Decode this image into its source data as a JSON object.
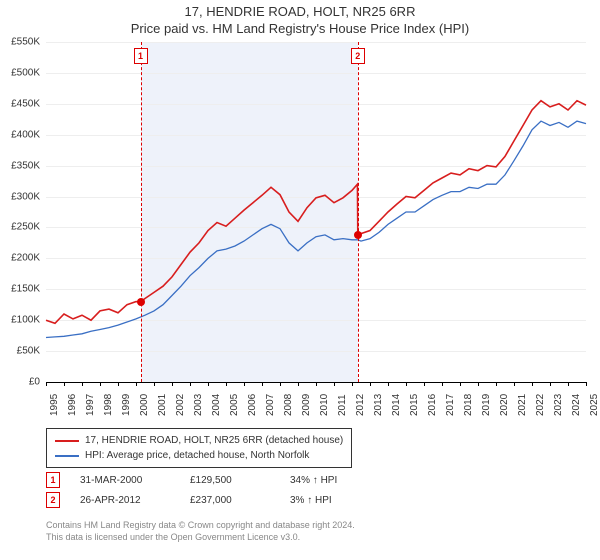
{
  "title_line1": "17, HENDRIE ROAD, HOLT, NR25 6RR",
  "title_line2": "Price paid vs. HM Land Registry's House Price Index (HPI)",
  "chart": {
    "type": "line",
    "x_start_year": 1995,
    "x_end_year": 2025,
    "x_tick_years": [
      1995,
      1996,
      1997,
      1998,
      1999,
      2000,
      2001,
      2002,
      2003,
      2004,
      2005,
      2006,
      2007,
      2008,
      2009,
      2010,
      2011,
      2012,
      2013,
      2014,
      2015,
      2016,
      2017,
      2018,
      2019,
      2020,
      2021,
      2022,
      2023,
      2024,
      2025
    ],
    "ylim": [
      0,
      550000
    ],
    "ytick_step": 50000,
    "y_tick_labels": [
      "£0",
      "£50K",
      "£100K",
      "£150K",
      "£200K",
      "£250K",
      "£300K",
      "£350K",
      "£400K",
      "£450K",
      "£500K",
      "£550K"
    ],
    "grid_color": "#eeeeee",
    "background_color": "#ffffff",
    "shaded_band": {
      "from_year": 2000.25,
      "to_year": 2012.32,
      "color": "#eef2fa"
    },
    "series": [
      {
        "name": "property",
        "label": "17, HENDRIE ROAD, HOLT, NR25 6RR (detached house)",
        "color": "#d81e1e",
        "line_width": 1.6,
        "points": [
          [
            1995.0,
            100000
          ],
          [
            1995.5,
            95000
          ],
          [
            1996.0,
            110000
          ],
          [
            1996.5,
            102000
          ],
          [
            1997.0,
            108000
          ],
          [
            1997.5,
            100000
          ],
          [
            1998.0,
            115000
          ],
          [
            1998.5,
            118000
          ],
          [
            1999.0,
            112000
          ],
          [
            1999.5,
            125000
          ],
          [
            2000.0,
            130000
          ],
          [
            2000.25,
            129500
          ],
          [
            2000.5,
            135000
          ],
          [
            2001.0,
            145000
          ],
          [
            2001.5,
            155000
          ],
          [
            2002.0,
            170000
          ],
          [
            2002.5,
            190000
          ],
          [
            2003.0,
            210000
          ],
          [
            2003.5,
            225000
          ],
          [
            2004.0,
            245000
          ],
          [
            2004.5,
            258000
          ],
          [
            2005.0,
            252000
          ],
          [
            2005.5,
            265000
          ],
          [
            2006.0,
            278000
          ],
          [
            2006.5,
            290000
          ],
          [
            2007.0,
            302000
          ],
          [
            2007.5,
            315000
          ],
          [
            2008.0,
            303000
          ],
          [
            2008.5,
            275000
          ],
          [
            2009.0,
            260000
          ],
          [
            2009.5,
            282000
          ],
          [
            2010.0,
            298000
          ],
          [
            2010.5,
            302000
          ],
          [
            2011.0,
            290000
          ],
          [
            2011.5,
            298000
          ],
          [
            2012.0,
            310000
          ],
          [
            2012.3,
            320000
          ],
          [
            2012.32,
            237000
          ],
          [
            2012.5,
            240000
          ],
          [
            2013.0,
            245000
          ],
          [
            2013.5,
            260000
          ],
          [
            2014.0,
            275000
          ],
          [
            2014.5,
            288000
          ],
          [
            2015.0,
            300000
          ],
          [
            2015.5,
            298000
          ],
          [
            2016.0,
            310000
          ],
          [
            2016.5,
            322000
          ],
          [
            2017.0,
            330000
          ],
          [
            2017.5,
            338000
          ],
          [
            2018.0,
            335000
          ],
          [
            2018.5,
            345000
          ],
          [
            2019.0,
            342000
          ],
          [
            2019.5,
            350000
          ],
          [
            2020.0,
            348000
          ],
          [
            2020.5,
            365000
          ],
          [
            2021.0,
            390000
          ],
          [
            2021.5,
            415000
          ],
          [
            2022.0,
            440000
          ],
          [
            2022.5,
            455000
          ],
          [
            2023.0,
            445000
          ],
          [
            2023.5,
            450000
          ],
          [
            2024.0,
            440000
          ],
          [
            2024.5,
            455000
          ],
          [
            2025.0,
            448000
          ]
        ]
      },
      {
        "name": "hpi",
        "label": "HPI: Average price, detached house, North Norfolk",
        "color": "#3a6fc4",
        "line_width": 1.3,
        "points": [
          [
            1995.0,
            72000
          ],
          [
            1995.5,
            73000
          ],
          [
            1996.0,
            74000
          ],
          [
            1996.5,
            76000
          ],
          [
            1997.0,
            78000
          ],
          [
            1997.5,
            82000
          ],
          [
            1998.0,
            85000
          ],
          [
            1998.5,
            88000
          ],
          [
            1999.0,
            92000
          ],
          [
            1999.5,
            97000
          ],
          [
            2000.0,
            102000
          ],
          [
            2000.5,
            108000
          ],
          [
            2001.0,
            115000
          ],
          [
            2001.5,
            125000
          ],
          [
            2002.0,
            140000
          ],
          [
            2002.5,
            155000
          ],
          [
            2003.0,
            172000
          ],
          [
            2003.5,
            185000
          ],
          [
            2004.0,
            200000
          ],
          [
            2004.5,
            212000
          ],
          [
            2005.0,
            215000
          ],
          [
            2005.5,
            220000
          ],
          [
            2006.0,
            228000
          ],
          [
            2006.5,
            238000
          ],
          [
            2007.0,
            248000
          ],
          [
            2007.5,
            255000
          ],
          [
            2008.0,
            248000
          ],
          [
            2008.5,
            225000
          ],
          [
            2009.0,
            212000
          ],
          [
            2009.5,
            225000
          ],
          [
            2010.0,
            235000
          ],
          [
            2010.5,
            238000
          ],
          [
            2011.0,
            230000
          ],
          [
            2011.5,
            232000
          ],
          [
            2012.0,
            230000
          ],
          [
            2012.32,
            230000
          ],
          [
            2012.5,
            228000
          ],
          [
            2013.0,
            232000
          ],
          [
            2013.5,
            242000
          ],
          [
            2014.0,
            255000
          ],
          [
            2014.5,
            265000
          ],
          [
            2015.0,
            275000
          ],
          [
            2015.5,
            275000
          ],
          [
            2016.0,
            285000
          ],
          [
            2016.5,
            295000
          ],
          [
            2017.0,
            302000
          ],
          [
            2017.5,
            308000
          ],
          [
            2018.0,
            308000
          ],
          [
            2018.5,
            315000
          ],
          [
            2019.0,
            313000
          ],
          [
            2019.5,
            320000
          ],
          [
            2020.0,
            320000
          ],
          [
            2020.5,
            335000
          ],
          [
            2021.0,
            358000
          ],
          [
            2021.5,
            382000
          ],
          [
            2022.0,
            408000
          ],
          [
            2022.5,
            422000
          ],
          [
            2023.0,
            415000
          ],
          [
            2023.5,
            420000
          ],
          [
            2024.0,
            412000
          ],
          [
            2024.5,
            422000
          ],
          [
            2025.0,
            418000
          ]
        ]
      }
    ],
    "events": [
      {
        "n": "1",
        "year": 2000.25,
        "price": 129500,
        "date_label": "31-MAR-2000",
        "price_label": "£129,500",
        "delta_label": "34% ↑ HPI"
      },
      {
        "n": "2",
        "year": 2012.32,
        "price": 237000,
        "date_label": "26-APR-2012",
        "price_label": "£237,000",
        "delta_label": "3% ↑ HPI"
      }
    ]
  },
  "legend": {
    "series1_color": "#d81e1e",
    "series1_label": "17, HENDRIE ROAD, HOLT, NR25 6RR (detached house)",
    "series2_color": "#3a6fc4",
    "series2_label": "HPI: Average price, detached house, North Norfolk"
  },
  "footer_line1": "Contains HM Land Registry data © Crown copyright and database right 2024.",
  "footer_line2": "This data is licensed under the Open Government Licence v3.0."
}
